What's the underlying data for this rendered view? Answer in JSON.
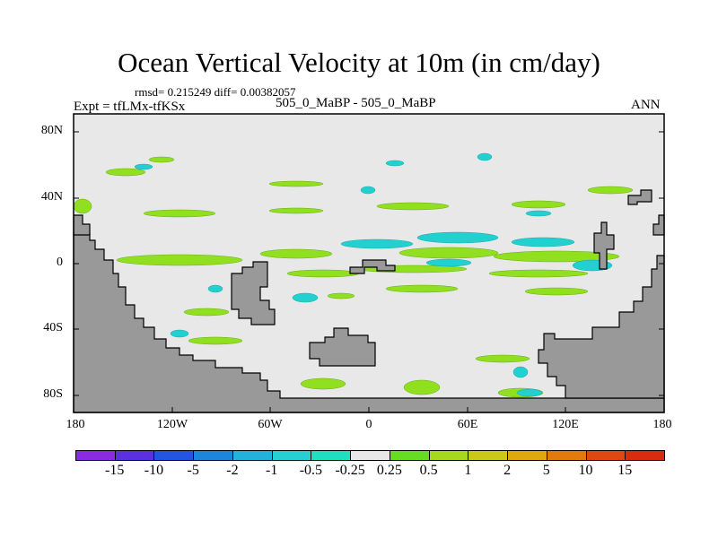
{
  "title": "Ocean Vertical Velocity at 10m (in cm/day)",
  "stats": "rmsd= 0.215249 diff= 0.00382057",
  "left_label": "Expt = tfLMx-tfKSx",
  "center_label": "505_0_MaBP - 505_0_MaBP",
  "right_label": "ANN",
  "chart_data": {
    "type": "heatmap",
    "title": "Ocean Vertical Velocity at 10m (in cm/day)",
    "subtitle": "505_0_MaBP - 505_0_MaBP",
    "x_range": [
      -180,
      180
    ],
    "y_range": [
      -90,
      90
    ],
    "x_ticks": [
      "180",
      "120W",
      "60W",
      "0",
      "60E",
      "120E",
      "180"
    ],
    "y_ticks": [
      "80N",
      "40N",
      "0",
      "40S",
      "80S"
    ],
    "colorbar": {
      "labels": [
        "-15",
        "-10",
        "-5",
        "-2",
        "-1",
        "-0.5",
        "-0.25",
        "0.25",
        "0.5",
        "1",
        "2",
        "5",
        "10",
        "15"
      ],
      "colors": [
        "#8a2be2",
        "#5b30e0",
        "#2255e0",
        "#1c86dc",
        "#22b2dc",
        "#25cfd2",
        "#20dfc0",
        "#e8e8e8",
        "#66dd22",
        "#a6d81e",
        "#ccc81a",
        "#dfa80e",
        "#e37a0c",
        "#df4810",
        "#d92b10"
      ]
    },
    "land_color": "#999999",
    "ocean_background": "#e8e8e8"
  },
  "colors": {
    "green": "#90e020",
    "cyan": "#22d0d0",
    "land": "#999999",
    "ocean": "#e8e8e8"
  }
}
